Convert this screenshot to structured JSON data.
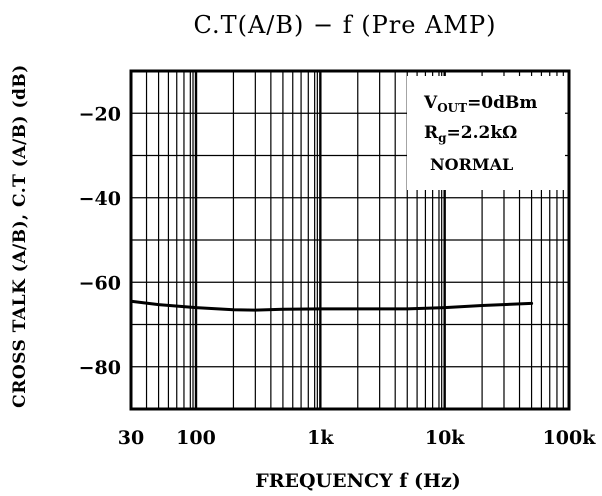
{
  "chart_data": {
    "type": "line",
    "title": "C.T(A/B) − f (Pre AMP)",
    "xlabel": "FREQUENCY f (Hz)",
    "ylabel": "CROSS TALK (A/B), C.T (A/B) (dB)",
    "x_scale": "log",
    "xlim": [
      30,
      100000
    ],
    "ylim": [
      -90,
      -10
    ],
    "x_ticks": [
      {
        "value": 30,
        "label": "30"
      },
      {
        "value": 100,
        "label": "100"
      },
      {
        "value": 1000,
        "label": "1k"
      },
      {
        "value": 10000,
        "label": "10k"
      },
      {
        "value": 100000,
        "label": "100k"
      }
    ],
    "y_ticks": [
      {
        "value": -20,
        "label": "−20"
      },
      {
        "value": -40,
        "label": "−40"
      },
      {
        "value": -60,
        "label": "−60"
      },
      {
        "value": -80,
        "label": "−80"
      }
    ],
    "grid": true,
    "annotations": {
      "vout_main": "V",
      "vout_sub": "OUT",
      "vout_value": "=0dBm",
      "rg_main": "R",
      "rg_sub": "g",
      "rg_value": "=2.2kΩ",
      "mode": "NORMAL"
    },
    "series": [
      {
        "x": [
          30,
          50,
          100,
          200,
          300,
          500,
          1000,
          2000,
          5000,
          10000,
          20000,
          50000
        ],
        "y": [
          -64.5,
          -65.3,
          -66.0,
          -66.5,
          -66.6,
          -66.4,
          -66.3,
          -66.3,
          -66.3,
          -66.0,
          -65.5,
          -65.0
        ]
      }
    ]
  }
}
